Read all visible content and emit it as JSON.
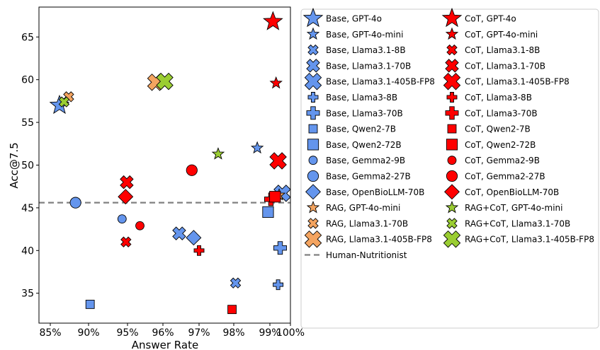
{
  "chart_data": {
    "type": "scatter",
    "xlabel": "Answer Rate",
    "ylabel": "Acc@7.5",
    "xlim": [
      84.5,
      100
    ],
    "ylim": [
      31.5,
      68.5
    ],
    "xticks": [
      85,
      90,
      95,
      96,
      97,
      98,
      99,
      100
    ],
    "xtick_labels": [
      "85%",
      "90%",
      "95%",
      "96%",
      "97%",
      "98%",
      "99%",
      "100%"
    ],
    "x_axis_note": "x-axis is non-linear: 85-90, 90-95 compressed; 95-100 linear",
    "yticks": [
      35,
      40,
      45,
      50,
      55,
      60,
      65
    ],
    "grid": false,
    "legend_position": "right-outside",
    "reference_line": {
      "name": "Human-Nutritionist",
      "y": 45.6,
      "color": "#808080",
      "style": "dashed"
    },
    "colors": {
      "base": "#6495ED",
      "cot": "#FF0000",
      "rag": "#F4A460",
      "ragcot": "#9ACD32"
    },
    "series": [
      {
        "name": "Base, GPT-4o",
        "group": "base",
        "marker": "star",
        "size": "large",
        "points": [
          [
            86.2,
            57.0
          ]
        ]
      },
      {
        "name": "Base, GPT-4o-mini",
        "group": "base",
        "marker": "star",
        "size": "small",
        "points": [
          [
            98.65,
            52.0
          ]
        ]
      },
      {
        "name": "Base, Llama3.1-8B",
        "group": "base",
        "marker": "x",
        "size": "small",
        "points": [
          [
            98.05,
            36.2
          ]
        ]
      },
      {
        "name": "Base, Llama3.1-70B",
        "group": "base",
        "marker": "x",
        "size": "medium",
        "points": [
          [
            96.45,
            42.0
          ]
        ]
      },
      {
        "name": "Base, Llama3.1-405B-FP8",
        "group": "base",
        "marker": "x",
        "size": "large",
        "points": [
          [
            99.6,
            46.7
          ]
        ]
      },
      {
        "name": "Base, Llama3-8B",
        "group": "base",
        "marker": "plus",
        "size": "small",
        "points": [
          [
            99.4,
            36.0
          ]
        ]
      },
      {
        "name": "Base, Llama3-70B",
        "group": "base",
        "marker": "plus",
        "size": "medium",
        "points": [
          [
            99.5,
            40.3
          ]
        ]
      },
      {
        "name": "Base, Qwen2-7B",
        "group": "base",
        "marker": "square",
        "size": "small",
        "points": [
          [
            90.2,
            33.7
          ]
        ]
      },
      {
        "name": "Base, Qwen2-72B",
        "group": "base",
        "marker": "square",
        "size": "medium",
        "points": [
          [
            98.95,
            44.5
          ]
        ]
      },
      {
        "name": "Base, Gemma2-9B",
        "group": "base",
        "marker": "circle",
        "size": "small",
        "points": [
          [
            94.3,
            43.7
          ]
        ]
      },
      {
        "name": "Base, Gemma2-27B",
        "group": "base",
        "marker": "circle",
        "size": "medium",
        "points": [
          [
            88.3,
            45.6
          ]
        ]
      },
      {
        "name": "Base, OpenBioLLM-70B",
        "group": "base",
        "marker": "diamond",
        "size": "medium",
        "points": [
          [
            96.85,
            41.5
          ]
        ]
      },
      {
        "name": "RAG, GPT-4o-mini",
        "group": "rag",
        "marker": "star",
        "size": "small",
        "points": [
          [
            99.45,
            46.5
          ]
        ]
      },
      {
        "name": "RAG, Llama3.1-70B",
        "group": "rag",
        "marker": "x",
        "size": "small",
        "points": [
          [
            87.4,
            58.0
          ]
        ]
      },
      {
        "name": "RAG, Llama3.1-405B-FP8",
        "group": "rag",
        "marker": "x",
        "size": "large",
        "points": [
          [
            95.8,
            59.7
          ]
        ]
      },
      {
        "name": "CoT, GPT-4o",
        "group": "cot",
        "marker": "star",
        "size": "large",
        "points": [
          [
            99.15,
            66.8
          ]
        ]
      },
      {
        "name": "CoT, GPT-4o-mini",
        "group": "cot",
        "marker": "star",
        "size": "small",
        "points": [
          [
            99.3,
            59.6
          ]
        ]
      },
      {
        "name": "CoT, Llama3.1-8B",
        "group": "cot",
        "marker": "x",
        "size": "small",
        "points": [
          [
            94.8,
            41.0
          ]
        ]
      },
      {
        "name": "CoT, Llama3.1-70B",
        "group": "cot",
        "marker": "x",
        "size": "medium",
        "points": [
          [
            94.9,
            48.0
          ]
        ]
      },
      {
        "name": "CoT, Llama3.1-405B-FP8",
        "group": "cot",
        "marker": "x",
        "size": "large",
        "points": [
          [
            99.4,
            50.5
          ]
        ]
      },
      {
        "name": "CoT, Llama3-8B",
        "group": "cot",
        "marker": "plus",
        "size": "small",
        "points": [
          [
            97.0,
            40.0
          ]
        ]
      },
      {
        "name": "CoT, Llama3-70B",
        "group": "cot",
        "marker": "plus",
        "size": "medium",
        "points": [
          [
            99.05,
            46.0
          ]
        ]
      },
      {
        "name": "CoT, Qwen2-7B",
        "group": "cot",
        "marker": "square",
        "size": "small",
        "points": [
          [
            97.95,
            33.1
          ]
        ]
      },
      {
        "name": "CoT, Qwen2-72B",
        "group": "cot",
        "marker": "square",
        "size": "medium",
        "points": [
          [
            99.25,
            46.3
          ]
        ]
      },
      {
        "name": "CoT, Gemma2-9B",
        "group": "cot",
        "marker": "circle",
        "size": "small",
        "points": [
          [
            95.35,
            42.9
          ]
        ]
      },
      {
        "name": "CoT, Gemma2-27B",
        "group": "cot",
        "marker": "circle",
        "size": "medium",
        "points": [
          [
            96.8,
            49.4
          ]
        ]
      },
      {
        "name": "CoT, OpenBioLLM-70B",
        "group": "cot",
        "marker": "diamond",
        "size": "medium",
        "points": [
          [
            94.75,
            46.3
          ]
        ]
      },
      {
        "name": "RAG+CoT, GPT-4o-mini",
        "group": "ragcot",
        "marker": "star",
        "size": "small",
        "points": [
          [
            97.55,
            51.3
          ]
        ]
      },
      {
        "name": "RAG+CoT, Llama3.1-70B",
        "group": "ragcot",
        "marker": "x",
        "size": "small",
        "points": [
          [
            86.8,
            57.4
          ]
        ]
      },
      {
        "name": "RAG+CoT, Llama3.1-405B-FP8",
        "group": "ragcot",
        "marker": "x",
        "size": "large",
        "points": [
          [
            96.05,
            59.8
          ]
        ]
      }
    ],
    "legend_left": [
      "Base, GPT-4o",
      "Base, GPT-4o-mini",
      "Base, Llama3.1-8B",
      "Base, Llama3.1-70B",
      "Base, Llama3.1-405B-FP8",
      "Base, Llama3-8B",
      "Base, Llama3-70B",
      "Base, Qwen2-7B",
      "Base, Qwen2-72B",
      "Base, Gemma2-9B",
      "Base, Gemma2-27B",
      "Base, OpenBioLLM-70B",
      "RAG, GPT-4o-mini",
      "RAG, Llama3.1-70B",
      "RAG, Llama3.1-405B-FP8",
      "Human-Nutritionist"
    ],
    "legend_right": [
      "CoT, GPT-4o",
      "CoT, GPT-4o-mini",
      "CoT, Llama3.1-8B",
      "CoT, Llama3.1-70B",
      "CoT, Llama3.1-405B-FP8",
      "CoT, Llama3-8B",
      "CoT, Llama3-70B",
      "CoT, Qwen2-7B",
      "CoT, Qwen2-72B",
      "CoT, Gemma2-9B",
      "CoT, Gemma2-27B",
      "CoT, OpenBioLLM-70B",
      "RAG+CoT, GPT-4o-mini",
      "RAG+CoT, Llama3.1-70B",
      "RAG+CoT, Llama3.1-405B-FP8"
    ]
  }
}
